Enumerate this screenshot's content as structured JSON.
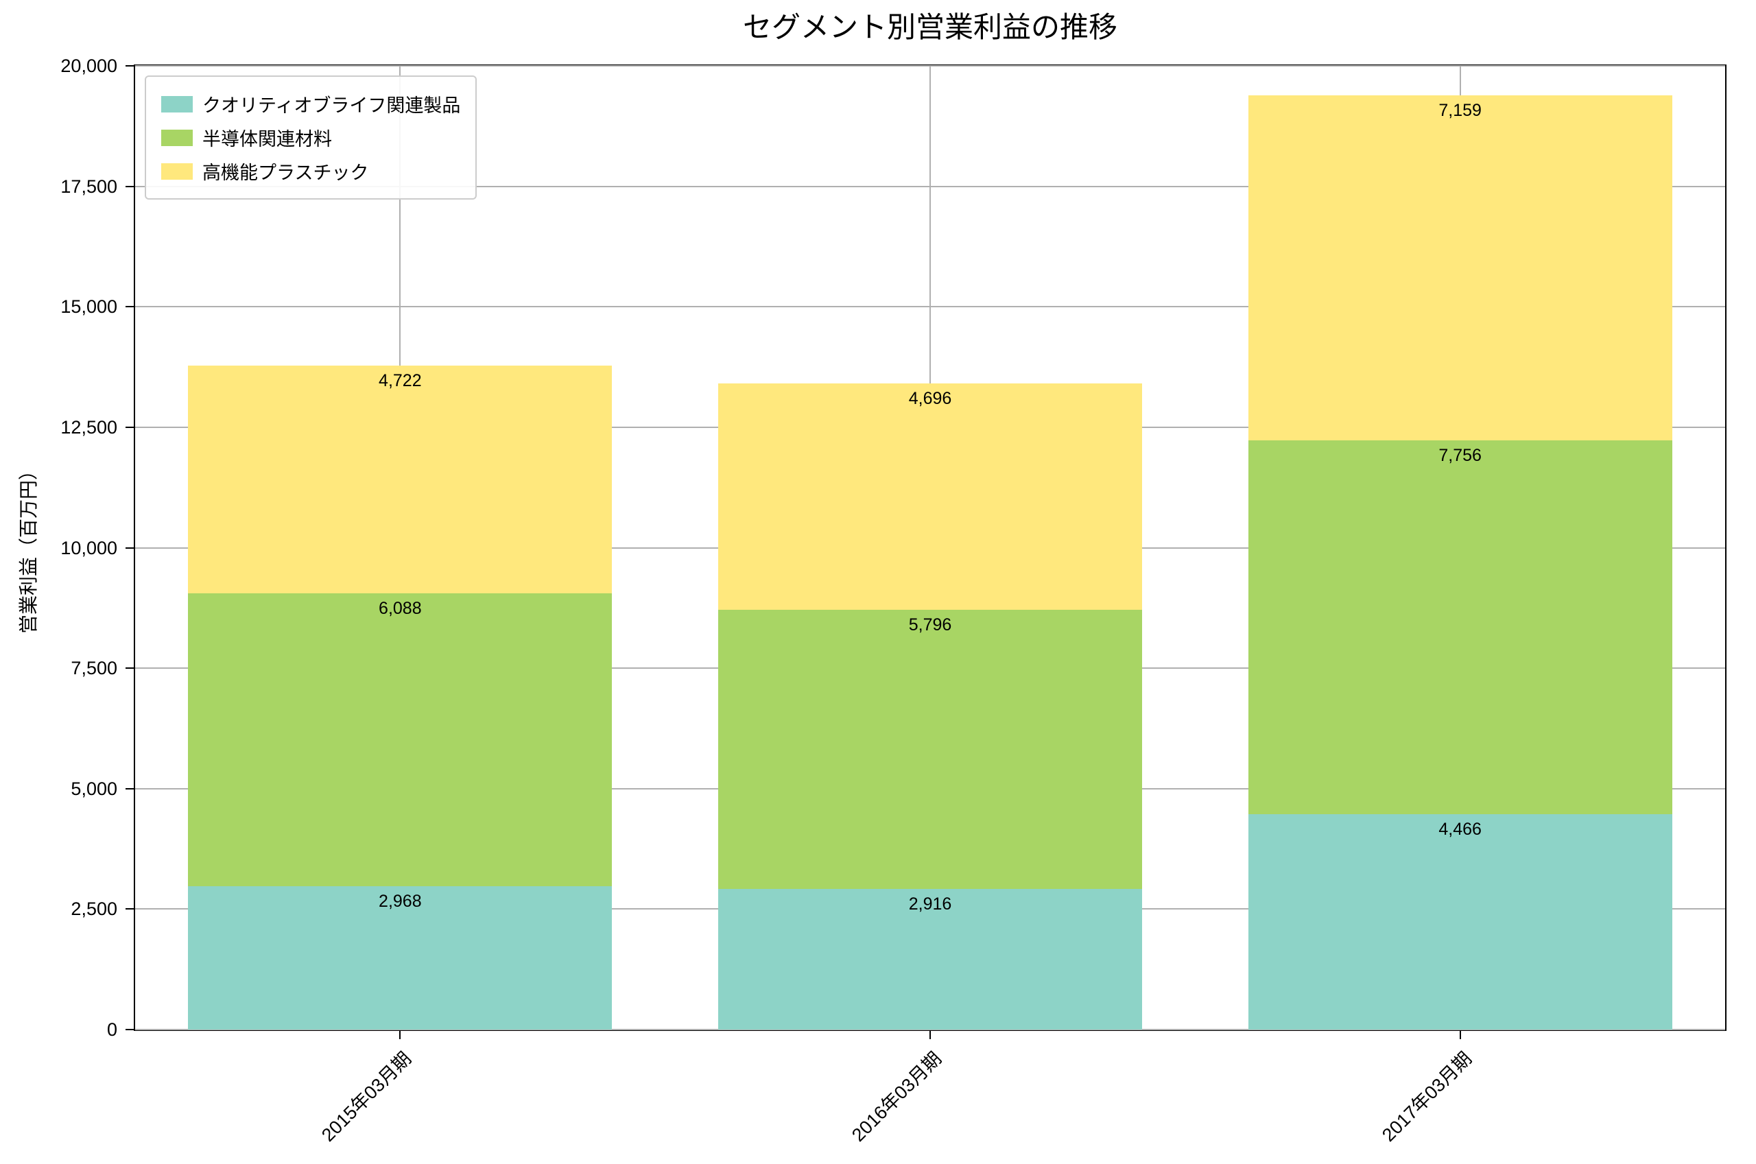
{
  "chart_data": {
    "type": "bar",
    "stacked": true,
    "title": "セグメント別営業利益の推移",
    "xlabel": "",
    "ylabel": "営業利益（百万円）",
    "categories": [
      "2015年03月期",
      "2016年03月期",
      "2017年03月期"
    ],
    "series": [
      {
        "name": "クオリティオブライフ関連製品",
        "color": "#8dd3c7",
        "values": [
          2968,
          2916,
          4466
        ]
      },
      {
        "name": "半導体関連材料",
        "color": "#a8d564",
        "values": [
          6088,
          5796,
          7756
        ]
      },
      {
        "name": "高機能プラスチック",
        "color": "#ffe87d",
        "values": [
          4722,
          4696,
          7159
        ]
      }
    ],
    "totals": [
      13778,
      13408,
      19381
    ],
    "ylim": [
      0,
      20000
    ],
    "yticks": [
      0,
      2500,
      5000,
      7500,
      10000,
      12500,
      15000,
      17500,
      20000
    ],
    "grid": true,
    "legend_position": "upper left",
    "bar_width_ratio": 0.8,
    "value_labels": true,
    "value_label_position": "inside-top-of-segment"
  }
}
